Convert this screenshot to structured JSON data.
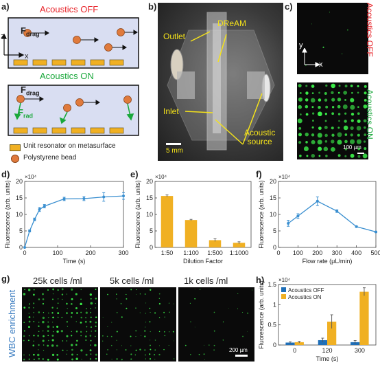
{
  "panel_a": {
    "label": "a)",
    "title_off": "Acoustics OFF",
    "title_on": "Acoustics ON",
    "axis_z": "z",
    "axis_x": "x",
    "fdrag": "F",
    "fdrag_sub": "drag",
    "frad": "F",
    "frad_sub": "rad",
    "legend_resonator": "Unit resonator on metasurface",
    "legend_bead": "Polystyrene bead"
  },
  "panel_b": {
    "label": "b)",
    "outlet": "Outlet",
    "dream": "DReAM",
    "inlet": "Inlet",
    "acoustic_source_1": "Acoustic",
    "acoustic_source_2": "source",
    "scale": "5 mm"
  },
  "panel_c": {
    "label": "c)",
    "off": "Acoustics OFF",
    "on": "Acoustics ON",
    "axis_y": "y",
    "axis_x": "x",
    "scale": "100 µm"
  },
  "panel_g": {
    "label": "g)",
    "col1": "25k cells /ml",
    "col2": "5k cells /ml",
    "col3": "1k cells /ml",
    "side": "WBC enrichment",
    "scale": "200 µm"
  },
  "colors": {
    "off_red": "#e8252b",
    "on_green": "#1aa83b",
    "line_blue": "#3a8fd0",
    "bar_orange": "#f0b023",
    "bar_blue": "#1f6fb8"
  },
  "chart_data": [
    {
      "panel": "d)",
      "type": "line",
      "x": [
        0,
        15,
        30,
        45,
        60,
        120,
        180,
        240,
        300
      ],
      "y": [
        0.0,
        5.0,
        8.5,
        11.5,
        12.5,
        14.7,
        14.8,
        15.3,
        15.6
      ],
      "err": [
        0,
        0.3,
        0.4,
        0.6,
        0.5,
        0.5,
        0.6,
        1.3,
        1.0
      ],
      "xlabel": "Time (s)",
      "ylabel": "Fluorescence (arb. units)",
      "exponent": "×10⁴",
      "xlim": [
        0,
        300
      ],
      "ylim": [
        0,
        20
      ],
      "xticks": [
        "0",
        "100",
        "200",
        "300"
      ],
      "yticks": [
        "0",
        "5",
        "10",
        "15",
        "20"
      ]
    },
    {
      "panel": "e)",
      "type": "bar",
      "categories": [
        "1:50",
        "1:100",
        "1:500",
        "1:1000"
      ],
      "values": [
        15.6,
        8.3,
        2.2,
        1.4
      ],
      "err": [
        0.3,
        0.2,
        0.4,
        0.3
      ],
      "xlabel": "Dilution Factor",
      "ylabel": "Fluorescence (arb. units)",
      "exponent": "×10⁴",
      "ylim": [
        0,
        20
      ],
      "yticks": [
        "0",
        "5",
        "10",
        "15",
        "20"
      ]
    },
    {
      "panel": "f)",
      "type": "line",
      "x": [
        50,
        100,
        200,
        300,
        400,
        500
      ],
      "y": [
        7.3,
        9.5,
        14.0,
        11.0,
        6.3,
        4.7
      ],
      "err": [
        0.9,
        0.7,
        1.3,
        0.4,
        0.2,
        0.2
      ],
      "xlabel": "Flow rate (μL/min)",
      "ylabel": "Fluorescence (arb. units)",
      "exponent": "×10⁴",
      "xlim": [
        0,
        500
      ],
      "ylim": [
        0,
        20
      ],
      "xticks": [
        "0",
        "100",
        "200",
        "300",
        "400",
        "500"
      ],
      "yticks": [
        "0",
        "5",
        "10",
        "15",
        "20"
      ]
    },
    {
      "panel": "h)",
      "type": "bar",
      "categories": [
        "0",
        "120",
        "300"
      ],
      "series": [
        {
          "name": "Acoustics OFF",
          "values": [
            0.06,
            0.12,
            0.07
          ],
          "err": [
            0.02,
            0.05,
            0.04
          ]
        },
        {
          "name": "Acoustics ON",
          "values": [
            0.07,
            0.58,
            1.32
          ],
          "err": [
            0.02,
            0.17,
            0.1
          ]
        }
      ],
      "xlabel": "Time (s)",
      "ylabel": "Fluorescence (arb. units)",
      "exponent": "×10⁴",
      "ylim": [
        0,
        1.5
      ],
      "yticks": [
        "0",
        "0.5",
        "1",
        "1.5"
      ],
      "legend": "top-left"
    }
  ]
}
